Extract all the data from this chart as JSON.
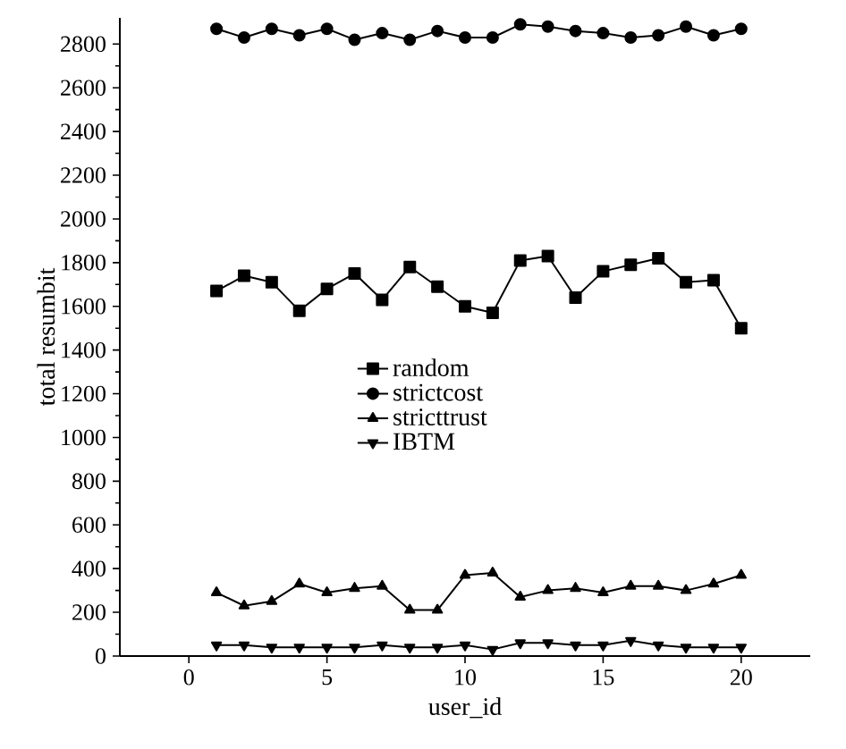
{
  "chart_data": {
    "type": "line",
    "xlabel": "user_id",
    "ylabel": "total resumbit",
    "x": [
      1,
      2,
      3,
      4,
      5,
      6,
      7,
      8,
      9,
      10,
      11,
      12,
      13,
      14,
      15,
      16,
      17,
      18,
      19,
      20
    ],
    "series": [
      {
        "name": "random",
        "color": "#000000",
        "marker": "square",
        "values": [
          1670,
          1740,
          1710,
          1580,
          1680,
          1750,
          1630,
          1780,
          1690,
          1600,
          1570,
          1810,
          1830,
          1640,
          1760,
          1790,
          1820,
          1710,
          1720,
          1500
        ]
      },
      {
        "name": "strictcost",
        "color": "#000000",
        "marker": "circle",
        "values": [
          2870,
          2830,
          2870,
          2840,
          2870,
          2820,
          2850,
          2820,
          2860,
          2830,
          2830,
          2890,
          2880,
          2860,
          2850,
          2830,
          2840,
          2880,
          2840,
          2870
        ]
      },
      {
        "name": "stricttrust",
        "color": "#000000",
        "marker": "triangle",
        "values": [
          290,
          230,
          250,
          330,
          290,
          310,
          320,
          210,
          210,
          370,
          380,
          270,
          300,
          310,
          290,
          320,
          320,
          300,
          330,
          370
        ]
      },
      {
        "name": "IBTM",
        "color": "#000000",
        "marker": "triangle down",
        "values": [
          50,
          50,
          40,
          40,
          40,
          40,
          50,
          40,
          40,
          50,
          30,
          60,
          60,
          50,
          50,
          70,
          50,
          40,
          40,
          40
        ]
      }
    ],
    "xlim": [
      -2.5,
      22.5
    ],
    "ylim": [
      0,
      2920
    ],
    "xticks": [
      0,
      5,
      10,
      15,
      20
    ],
    "yticks": [
      0,
      200,
      400,
      600,
      800,
      1000,
      1200,
      1400,
      1600,
      1800,
      2000,
      2200,
      2400,
      2600,
      2800
    ],
    "legend": "center",
    "line_style": "solid",
    "grid": false
  }
}
